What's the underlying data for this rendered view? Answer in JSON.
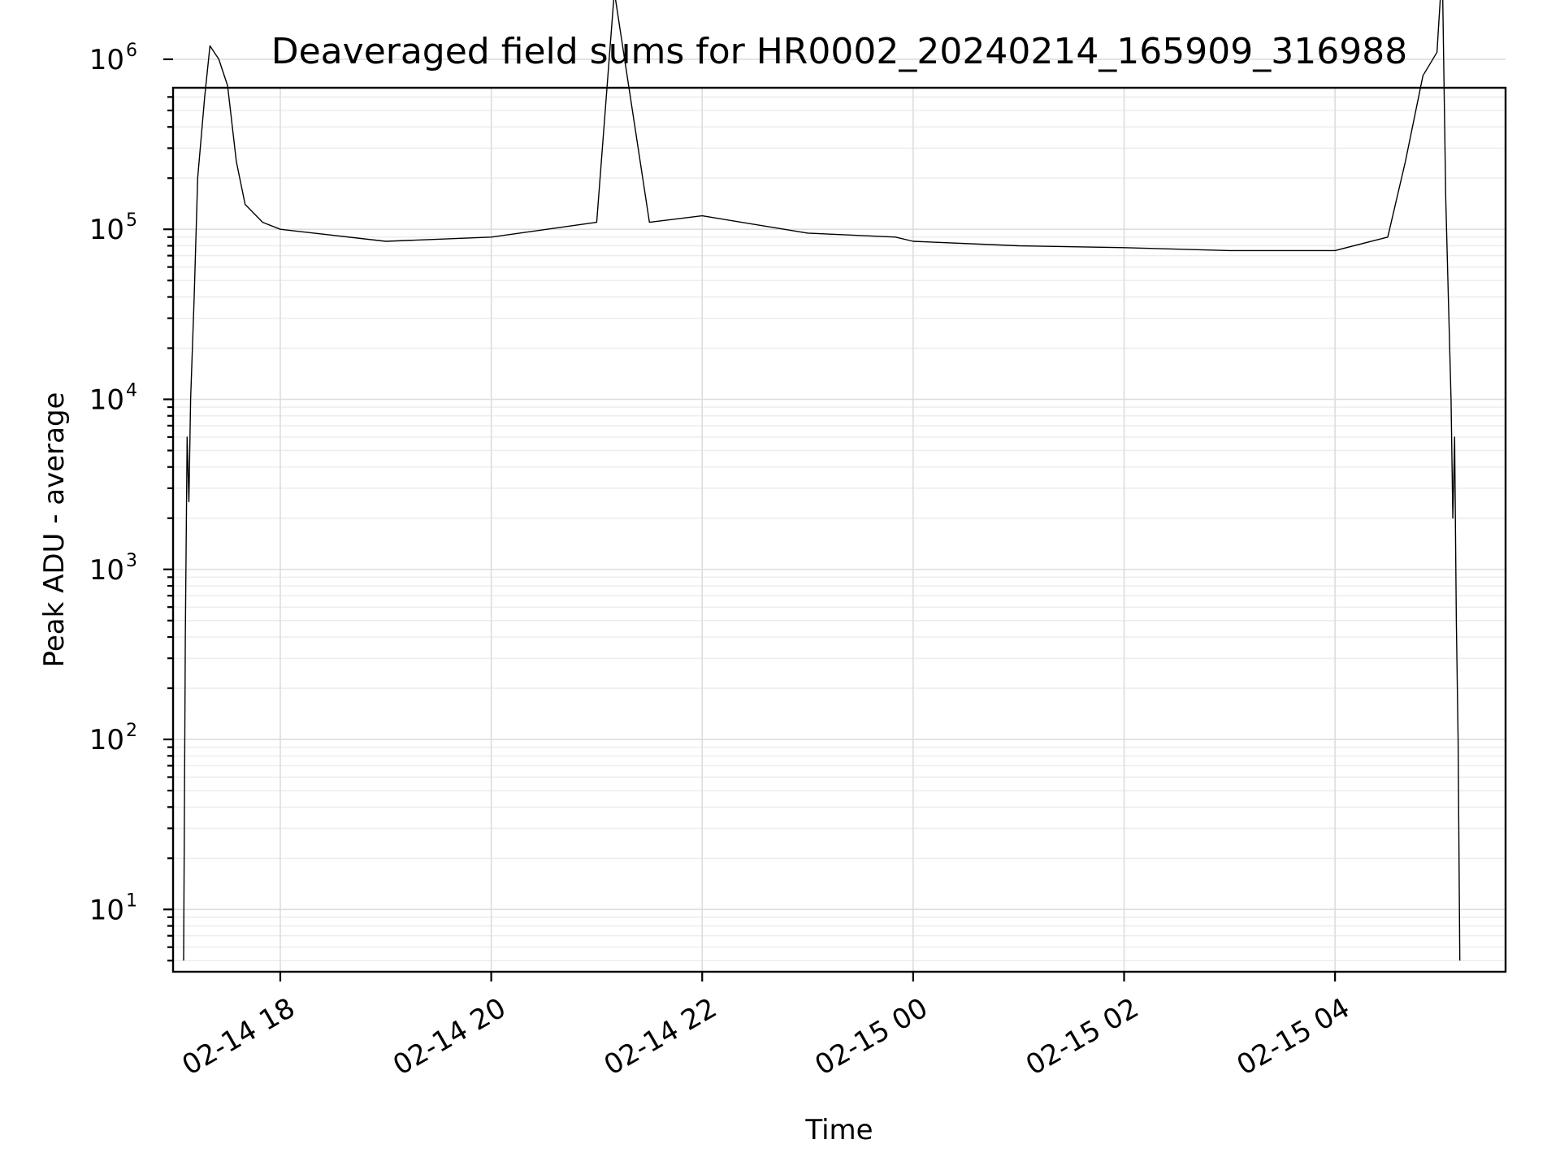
{
  "chart_data": {
    "type": "line",
    "title": "Deaveraged field sums for HR0002_20240214_165909_316988",
    "xlabel": "Time",
    "ylabel": "Peak ADU - average",
    "yscale": "log",
    "ylim": [
      4.3,
      680000
    ],
    "xlim": [
      "2024-02-14 16:59",
      "2024-02-15 05:37"
    ],
    "grid": true,
    "x_ticks": [
      {
        "value": "2024-02-14 18:00",
        "label": "02-14 18"
      },
      {
        "value": "2024-02-14 20:00",
        "label": "02-14 20"
      },
      {
        "value": "2024-02-14 22:00",
        "label": "02-14 22"
      },
      {
        "value": "2024-02-15 00:00",
        "label": "02-15 00"
      },
      {
        "value": "2024-02-15 02:00",
        "label": "02-15 02"
      },
      {
        "value": "2024-02-15 04:00",
        "label": "02-15 04"
      }
    ],
    "y_ticks": [
      {
        "value": 10,
        "base": "10",
        "exp": "1"
      },
      {
        "value": 100,
        "base": "10",
        "exp": "2"
      },
      {
        "value": 1000,
        "base": "10",
        "exp": "3"
      },
      {
        "value": 10000,
        "base": "10",
        "exp": "4"
      },
      {
        "value": 100000,
        "base": "10",
        "exp": "5"
      },
      {
        "value": 1000000,
        "base": "10",
        "exp": "6"
      }
    ],
    "series": [
      {
        "color": "#000000",
        "points": [
          [
            "2024-02-14 17:05",
            5
          ],
          [
            "2024-02-14 17:06",
            400
          ],
          [
            "2024-02-14 17:07",
            6000
          ],
          [
            "2024-02-14 17:08",
            2500
          ],
          [
            "2024-02-14 17:09",
            10000
          ],
          [
            "2024-02-14 17:11",
            40000
          ],
          [
            "2024-02-14 17:13",
            200000
          ],
          [
            "2024-02-14 17:17",
            600000
          ],
          [
            "2024-02-14 17:20",
            1200000
          ],
          [
            "2024-02-14 17:25",
            1000000
          ],
          [
            "2024-02-14 17:30",
            700000
          ],
          [
            "2024-02-14 17:35",
            250000
          ],
          [
            "2024-02-14 17:40",
            140000
          ],
          [
            "2024-02-14 17:50",
            110000
          ],
          [
            "2024-02-14 18:00",
            100000
          ],
          [
            "2024-02-14 19:00",
            85000
          ],
          [
            "2024-02-14 20:00",
            90000
          ],
          [
            "2024-02-14 21:00",
            110000
          ],
          [
            "2024-02-14 21:10",
            2500000
          ],
          [
            "2024-02-14 21:30",
            110000
          ],
          [
            "2024-02-14 22:00",
            120000
          ],
          [
            "2024-02-14 23:00",
            95000
          ],
          [
            "2024-02-14 23:50",
            90000
          ],
          [
            "2024-02-15 00:00",
            85000
          ],
          [
            "2024-02-15 01:00",
            80000
          ],
          [
            "2024-02-15 02:00",
            78000
          ],
          [
            "2024-02-15 03:00",
            75000
          ],
          [
            "2024-02-15 04:00",
            75000
          ],
          [
            "2024-02-15 04:30",
            90000
          ],
          [
            "2024-02-15 04:40",
            250000
          ],
          [
            "2024-02-15 04:50",
            800000
          ],
          [
            "2024-02-15 04:58",
            1100000
          ],
          [
            "2024-02-15 05:01",
            3500000
          ],
          [
            "2024-02-15 05:03",
            150000
          ],
          [
            "2024-02-15 05:06",
            10000
          ],
          [
            "2024-02-15 05:07",
            2000
          ],
          [
            "2024-02-15 05:08",
            6000
          ],
          [
            "2024-02-15 05:09",
            500
          ],
          [
            "2024-02-15 05:10",
            100
          ],
          [
            "2024-02-15 05:11",
            5
          ]
        ]
      }
    ]
  }
}
